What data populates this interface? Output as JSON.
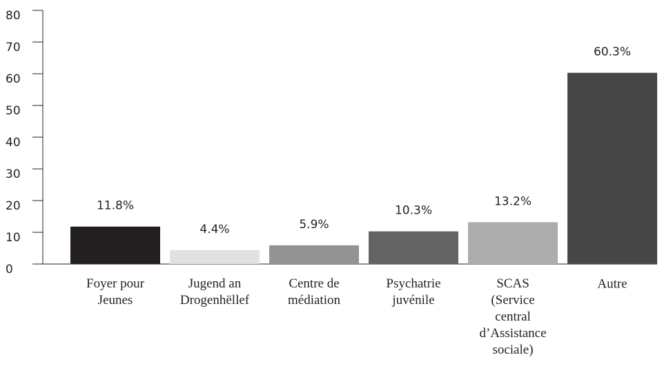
{
  "chart_data": {
    "type": "bar",
    "categories": [
      "Foyer pour\nJeunes",
      "Jugend an\nDrogenhëllef",
      "Centre de\nmédiation",
      "Psychatrie\njuvénile",
      "SCAS\n(Service\ncentral\nd’Assistance\nsociale)",
      "Autre"
    ],
    "values": [
      11.8,
      4.4,
      5.9,
      10.3,
      13.2,
      60.3
    ],
    "value_labels": [
      "11.8%",
      "4.4%",
      "5.9%",
      "10.3%",
      "13.2%",
      "60.3%"
    ],
    "colors": [
      "#231f20",
      "#e1e1e1",
      "#939393",
      "#646464",
      "#adadad",
      "#464646"
    ],
    "ylim": [
      0,
      80
    ],
    "yticks": [
      0,
      10,
      20,
      30,
      40,
      50,
      60,
      70,
      80
    ]
  }
}
